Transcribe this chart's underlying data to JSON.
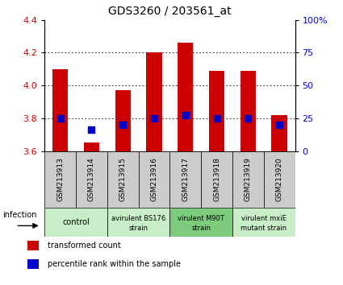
{
  "title": "GDS3260 / 203561_at",
  "samples": [
    "GSM213913",
    "GSM213914",
    "GSM213915",
    "GSM213916",
    "GSM213917",
    "GSM213918",
    "GSM213919",
    "GSM213920"
  ],
  "red_values": [
    4.1,
    3.65,
    3.97,
    4.2,
    4.26,
    4.09,
    4.09,
    3.82
  ],
  "blue_values": [
    3.8,
    3.73,
    3.76,
    3.8,
    3.82,
    3.8,
    3.8,
    3.76
  ],
  "ylim": [
    3.6,
    4.4
  ],
  "yticks_left": [
    3.6,
    3.8,
    4.0,
    4.2,
    4.4
  ],
  "yticks_right": [
    0,
    25,
    50,
    75,
    100
  ],
  "gridlines": [
    3.8,
    4.0,
    4.2
  ],
  "groups": [
    {
      "label": "control",
      "label2": "",
      "start": 0,
      "end": 2,
      "color": "#c8eec8"
    },
    {
      "label": "avirulent BS176",
      "label2": "strain",
      "start": 2,
      "end": 4,
      "color": "#c8eec8"
    },
    {
      "label": "virulent M90T",
      "label2": "strain",
      "start": 4,
      "end": 6,
      "color": "#7dcc7d"
    },
    {
      "label": "virulent mxiE",
      "label2": "mutant strain",
      "start": 6,
      "end": 8,
      "color": "#c8eec8"
    }
  ],
  "sample_box_color": "#cccccc",
  "bar_color": "#cc0000",
  "dot_color": "#0000cc",
  "bar_width": 0.5,
  "dot_size": 30,
  "left_axis_color": "#cc0000",
  "right_axis_color": "#0000cc",
  "legend_items": [
    {
      "label": "transformed count",
      "color": "#cc0000"
    },
    {
      "label": "percentile rank within the sample",
      "color": "#0000cc"
    }
  ],
  "infection_label": "infection",
  "base": 3.6
}
